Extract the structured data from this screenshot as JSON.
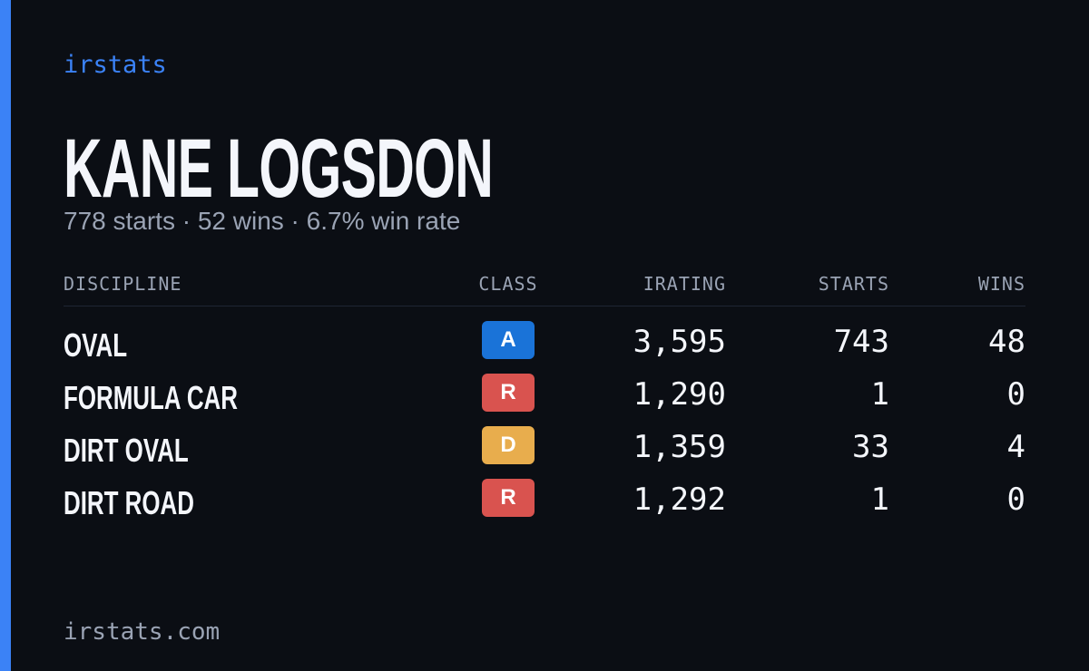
{
  "brand": "irstats",
  "name": "KANE LOGSDON",
  "summary": "778 starts · 52 wins · 6.7% win rate",
  "table": {
    "headers": [
      "DISCIPLINE",
      "CLASS",
      "IRATING",
      "STARTS",
      "WINS"
    ],
    "rows": [
      {
        "discipline": "OVAL",
        "class": "A",
        "class_color": "#1a73d8",
        "irating": "3,595",
        "starts": "743",
        "wins": "48"
      },
      {
        "discipline": "FORMULA CAR",
        "class": "R",
        "class_color": "#d9534f",
        "irating": "1,290",
        "starts": "1",
        "wins": "0"
      },
      {
        "discipline": "DIRT OVAL",
        "class": "D",
        "class_color": "#e8ad4d",
        "irating": "1,359",
        "starts": "33",
        "wins": "4"
      },
      {
        "discipline": "DIRT ROAD",
        "class": "R",
        "class_color": "#d9534f",
        "irating": "1,292",
        "starts": "1",
        "wins": "0"
      }
    ]
  },
  "footer": "irstats.com"
}
